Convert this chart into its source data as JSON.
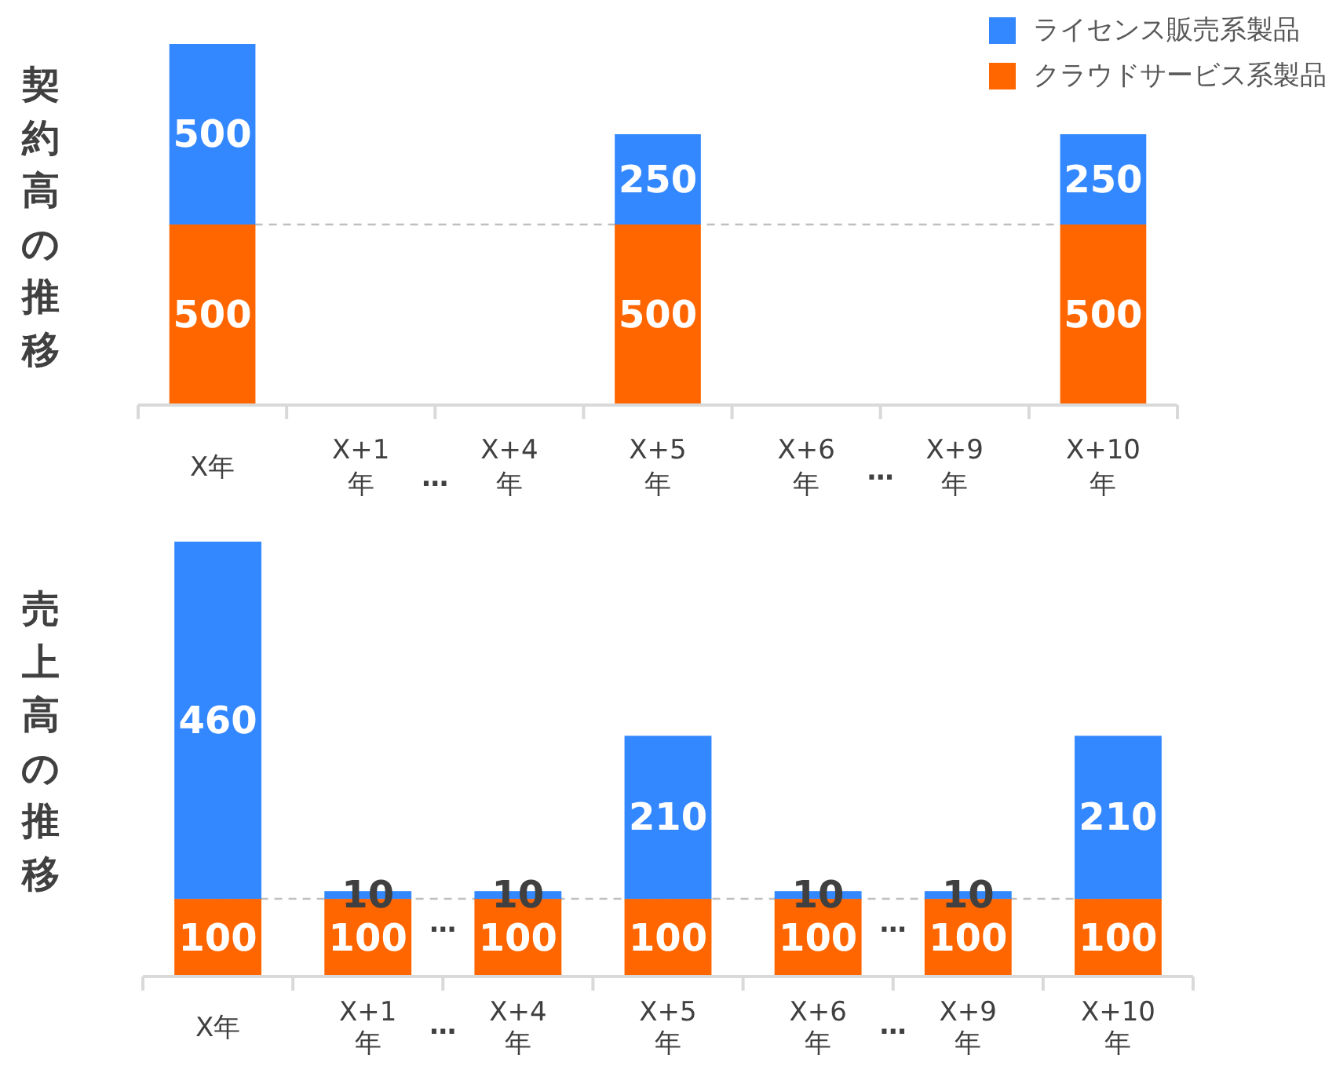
{
  "chart_data": [
    {
      "type": "bar",
      "title": "契約高の推移",
      "categories": [
        "X年",
        "X+1年",
        "X+4年",
        "X+5年",
        "X+6年",
        "X+9年",
        "X+10年"
      ],
      "stacked": true,
      "series": [
        {
          "name": "クラウドサービス系製品",
          "color": "#ff6600",
          "values": [
            500,
            null,
            null,
            500,
            null,
            null,
            500
          ]
        },
        {
          "name": "ライセンス販売系製品",
          "color": "#3388ff",
          "values": [
            500,
            null,
            null,
            250,
            null,
            null,
            250
          ]
        }
      ],
      "data_labels": true,
      "legend": "top right",
      "tick_labels": "x",
      "ref_lines": [
        {
          "axis": "y",
          "value": 500,
          "color": "#bfbfbf",
          "line_style": "dashed"
        }
      ],
      "annotations": [
        "…",
        "…"
      ]
    },
    {
      "type": "bar",
      "title": "売上高の推移",
      "categories": [
        "X年",
        "X+1年",
        "X+4年",
        "X+5年",
        "X+6年",
        "X+9年",
        "X+10年"
      ],
      "stacked": true,
      "series": [
        {
          "color": "#ff6600",
          "values": [
            100,
            100,
            100,
            100,
            100,
            100,
            100
          ]
        },
        {
          "color": "#3388ff",
          "values": [
            460,
            10,
            10,
            210,
            10,
            10,
            210
          ]
        }
      ],
      "data_labels": true,
      "tick_labels": "x",
      "ref_lines": [
        {
          "axis": "y",
          "value": 100,
          "color": "#bfbfbf",
          "line_style": "dashed"
        }
      ],
      "annotations": [
        "…",
        "…",
        "…",
        "…"
      ]
    }
  ]
}
